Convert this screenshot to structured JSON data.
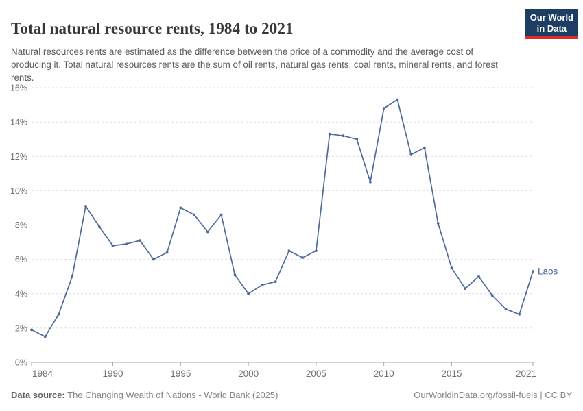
{
  "header": {
    "title": "Total natural resource rents, 1984 to 2021",
    "subtitle": "Natural resources rents are estimated as the difference between the price of a commodity and the average cost of producing it. Total natural resources rents are the sum of oil rents, natural gas rents, coal rents, mineral rents, and forest rents.",
    "logo": {
      "line1": "Our World",
      "line2": "in Data",
      "bg_color": "#1d3d63",
      "accent_color": "#dc2e27"
    }
  },
  "chart_data": {
    "type": "line",
    "title": "Total natural resource rents, 1984 to 2021",
    "xlabel": "",
    "ylabel": "",
    "x": [
      1984,
      1985,
      1986,
      1987,
      1988,
      1989,
      1990,
      1991,
      1992,
      1993,
      1994,
      1995,
      1996,
      1997,
      1998,
      1999,
      2000,
      2001,
      2002,
      2003,
      2004,
      2005,
      2006,
      2007,
      2008,
      2009,
      2010,
      2011,
      2012,
      2013,
      2014,
      2015,
      2016,
      2017,
      2018,
      2019,
      2020,
      2021
    ],
    "series": [
      {
        "name": "Laos",
        "color": "#4c6a9c",
        "values": [
          1.9,
          1.5,
          2.8,
          5.0,
          9.1,
          7.9,
          6.8,
          6.9,
          7.1,
          6.0,
          6.4,
          9.0,
          8.6,
          7.6,
          8.6,
          5.1,
          4.0,
          4.5,
          4.7,
          6.5,
          6.1,
          6.5,
          13.3,
          13.2,
          13.0,
          10.5,
          14.8,
          15.3,
          12.1,
          12.5,
          8.1,
          5.5,
          4.3,
          5.0,
          3.9,
          3.1,
          2.8,
          5.3
        ]
      }
    ],
    "xlim": [
      1984,
      2021
    ],
    "ylim": [
      0,
      16
    ],
    "x_ticks": [
      1984,
      1990,
      1995,
      2000,
      2005,
      2010,
      2015,
      2021
    ],
    "x_tick_labels": [
      "1984",
      "1990",
      "1995",
      "2000",
      "2005",
      "2010",
      "2015",
      "2021"
    ],
    "y_ticks": [
      0,
      2,
      4,
      6,
      8,
      10,
      12,
      14,
      16
    ],
    "y_tick_labels": [
      "0%",
      "2%",
      "4%",
      "6%",
      "8%",
      "10%",
      "12%",
      "14%",
      "16%"
    ],
    "grid": "horizontal-dashed",
    "legend_position": "end-of-line",
    "end_label": "Laos",
    "colors": {
      "gridline": "#dcdcdc",
      "axis": "#a8a8a8",
      "tick_text": "#6e6e6e"
    }
  },
  "footer": {
    "datasource_label": "Data source:",
    "datasource_value": " The Changing Wealth of Nations - World Bank (2025)",
    "credit": "OurWorldinData.org/fossil-fuels | CC BY"
  }
}
